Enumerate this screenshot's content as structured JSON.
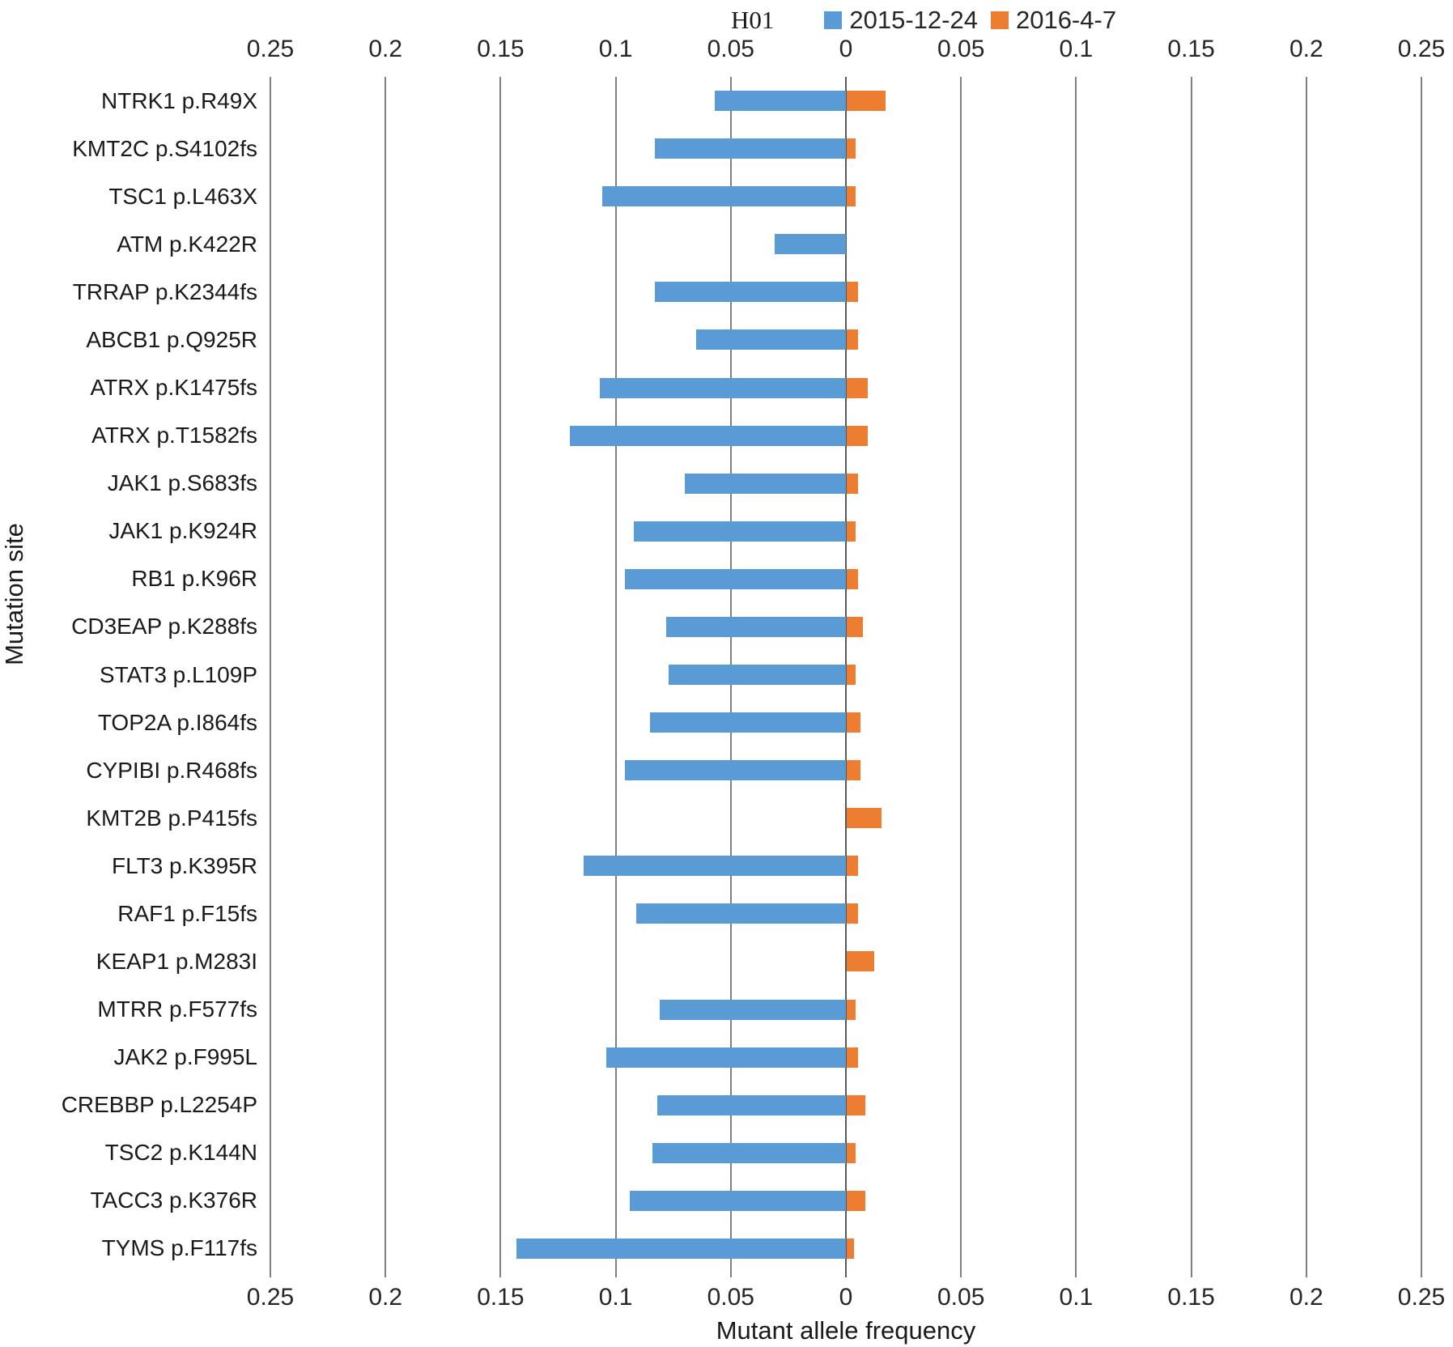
{
  "legend": {
    "sample_label": "H01"
  },
  "colors": {
    "background": "#FFFFFF",
    "gridline": "#808080",
    "zero_line": "#595959",
    "text": "#262626",
    "series_blue": "#5B9BD5",
    "series_orange": "#ED7D31"
  },
  "chart_data": {
    "type": "bar",
    "orientation": "horizontal-diverging",
    "title": "",
    "xlabel": "Mutant allele frequency",
    "ylabel": "Mutation site",
    "xlim": [
      -0.25,
      0.25
    ],
    "grid": true,
    "legend_position": "top",
    "tick_values": [
      -0.25,
      -0.2,
      -0.15,
      -0.1,
      -0.05,
      0,
      0.05,
      0.1,
      0.15,
      0.2,
      0.25
    ],
    "tick_labels": [
      "0.25",
      "0.2",
      "0.15",
      "0.1",
      "0.05",
      "0",
      "0.05",
      "0.1",
      "0.15",
      "0.2",
      "0.25"
    ],
    "categories": [
      "NTRK1 p.R49X",
      "KMT2C p.S4102fs",
      "TSC1 p.L463X",
      "ATM p.K422R",
      "TRRAP p.K2344fs",
      "ABCB1 p.Q925R",
      "ATRX p.K1475fs",
      "ATRX p.T1582fs",
      "JAK1 p.S683fs",
      "JAK1 p.K924R",
      "RB1 p.K96R",
      "CD3EAP p.K288fs",
      "STAT3 p.L109P",
      "TOP2A p.I864fs",
      "CYPIBI p.R468fs",
      "KMT2B p.P415fs",
      "FLT3 p.K395R",
      "RAF1 p.F15fs",
      "KEAP1 p.M283I",
      "MTRR p.F577fs",
      "JAK2 p.F995L",
      "CREBBP p.L2254P",
      "TSC2 p.K144N",
      "TACC3 p.K376R",
      "TYMS p.F117fs"
    ],
    "series": [
      {
        "name": "2015-12-24",
        "color": "#5B9BD5",
        "direction": "left",
        "values": [
          0.057,
          0.083,
          0.106,
          0.031,
          0.083,
          0.065,
          0.107,
          0.12,
          0.07,
          0.092,
          0.096,
          0.078,
          0.077,
          0.085,
          0.096,
          0,
          0.114,
          0.091,
          0,
          0.081,
          0.104,
          0.082,
          0.084,
          0.094,
          0.143
        ]
      },
      {
        "name": "2016-4-7",
        "color": "#ED7D31",
        "direction": "right",
        "values": [
          0.017,
          0.004,
          0.004,
          0,
          0.005,
          0.005,
          0.009,
          0.009,
          0.005,
          0.004,
          0.005,
          0.007,
          0.004,
          0.006,
          0.006,
          0.015,
          0.005,
          0.005,
          0.012,
          0.004,
          0.005,
          0.008,
          0.004,
          0.008,
          0.003
        ]
      }
    ]
  }
}
